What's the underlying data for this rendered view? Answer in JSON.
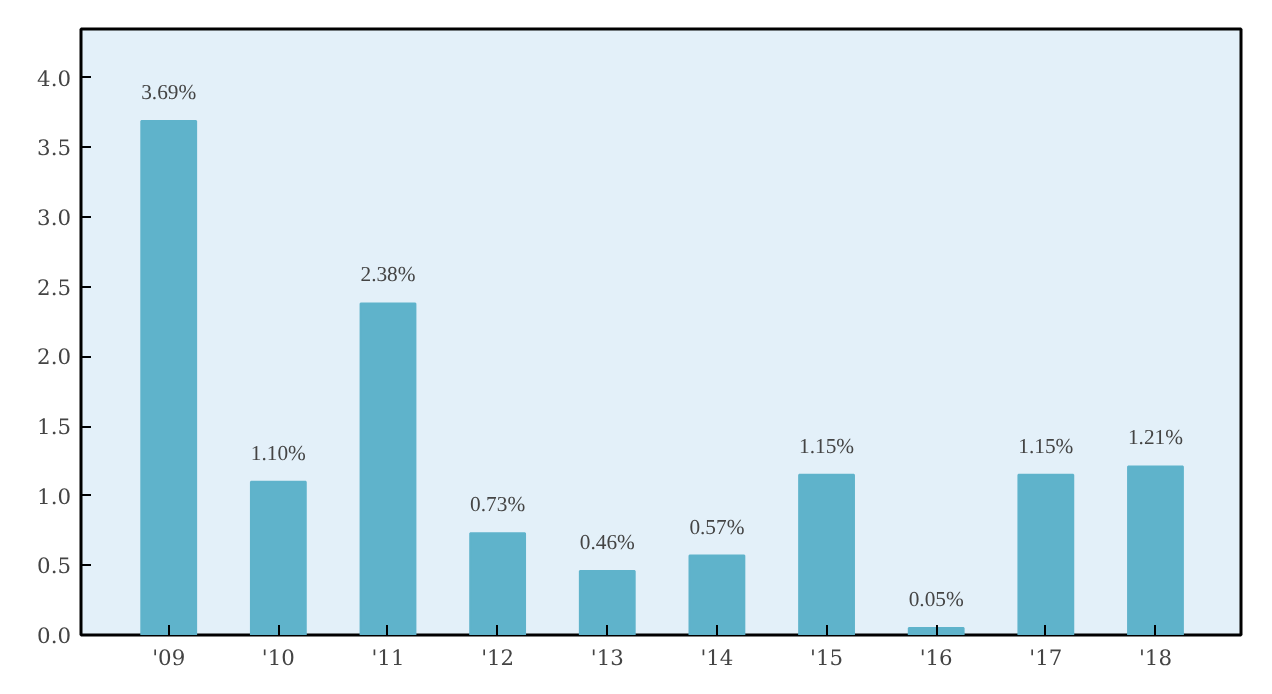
{
  "chart_data": {
    "type": "bar",
    "categories": [
      "'09",
      "'10",
      "'11",
      "'12",
      "'13",
      "'14",
      "'15",
      "'16",
      "'17",
      "'18"
    ],
    "values": [
      3.69,
      1.1,
      2.38,
      0.73,
      0.46,
      0.57,
      1.15,
      0.05,
      1.15,
      1.21
    ],
    "value_labels": [
      "3.69%",
      "1.10%",
      "2.38%",
      "0.73%",
      "0.46%",
      "0.57%",
      "1.15%",
      "0.05%",
      "1.15%",
      "1.21%"
    ],
    "color": "#5fb3cb",
    "ylim": [
      0,
      4.35
    ],
    "yticks": [
      {
        "value": 0,
        "label": "0.0"
      },
      0.5,
      {
        "value": 1,
        "label": "1.0"
      },
      1.5,
      {
        "value": 2,
        "label": "2.0"
      },
      2.5,
      {
        "value": 3,
        "label": "3.0"
      },
      3.5,
      {
        "value": 4,
        "label": "4.0"
      }
    ],
    "grid": false
  }
}
